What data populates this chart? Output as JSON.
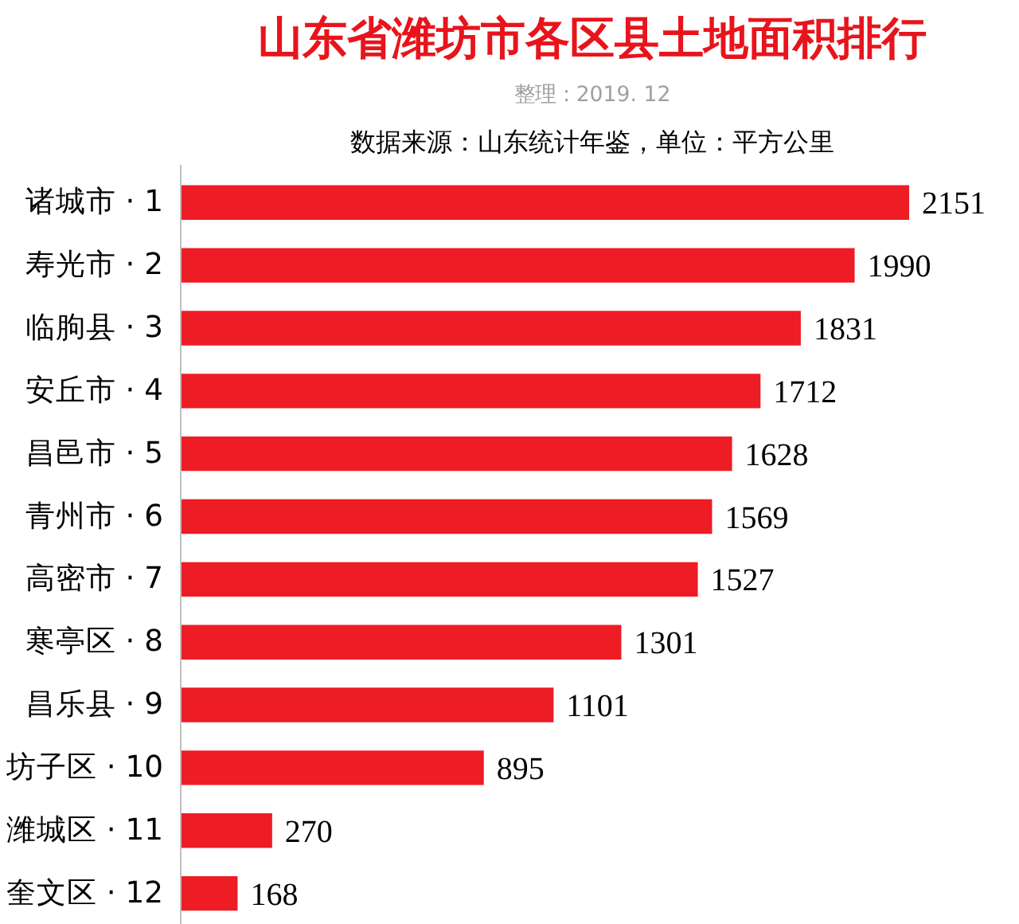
{
  "chart_data": {
    "type": "bar",
    "orientation": "horizontal",
    "title": "山东省潍坊市各区县土地面积排行",
    "subtitle": "整理：2019. 12",
    "annotations": [
      "数据来源：山东统计年鉴，单位：平方公里"
    ],
    "categories": [
      "诸城市 · 1",
      "寿光市 · 2",
      "临朐县 · 3",
      "安丘市 · 4",
      "昌邑市 · 5",
      "青州市 · 6",
      "高密市 · 7",
      "寒亭区 · 8",
      "昌乐县 · 9",
      "坊子区 · 10",
      "潍城区 · 11",
      "奎文区 · 12"
    ],
    "values": [
      2151,
      1990,
      1831,
      1712,
      1628,
      1569,
      1527,
      1301,
      1101,
      895,
      270,
      168
    ],
    "color": "#ee1c24",
    "data_labels": true,
    "grid": false
  }
}
